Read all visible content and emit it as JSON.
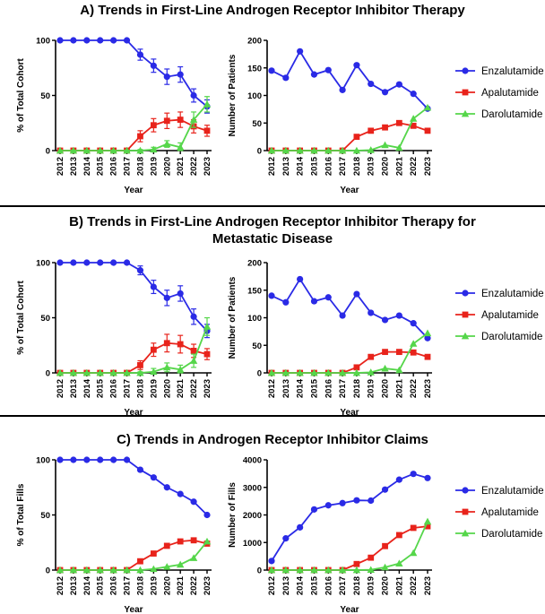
{
  "sections": [
    {
      "title": "A) Trends in First-Line Androgen Receptor Inhibitor Therapy"
    },
    {
      "title": "B) Trends in First-Line Androgen Receptor Inhibitor Therapy for Metastatic Disease"
    },
    {
      "title": "C) Trends in Androgen Receptor Inhibitor Claims"
    }
  ],
  "legend": {
    "entries": [
      {
        "label": "Enzalutamide",
        "color": "#2a2ae6",
        "marker": "circle"
      },
      {
        "label": "Apalutamide",
        "color": "#e8231b",
        "marker": "square"
      },
      {
        "label": "Darolutamide",
        "color": "#55d64a",
        "marker": "triangle"
      }
    ]
  },
  "chart_data": [
    {
      "type": "line",
      "panel": "A-left",
      "xlabel": "Year",
      "ylabel": "% of Total Cohort",
      "ylim": [
        0,
        100
      ],
      "yticks": [
        0,
        50,
        100
      ],
      "categories": [
        "2012",
        "2013",
        "2014",
        "2015",
        "2016",
        "2017",
        "2018",
        "2019",
        "2020",
        "2021",
        "2022",
        "2023"
      ],
      "error_bars": true,
      "series": [
        {
          "name": "Enzalutamide",
          "values": [
            100,
            100,
            100,
            100,
            100,
            100,
            87,
            77,
            67,
            69,
            50,
            40
          ],
          "errors": [
            1,
            1,
            1,
            1,
            1,
            1,
            5,
            6,
            7,
            7,
            6,
            6
          ]
        },
        {
          "name": "Apalutamide",
          "values": [
            0,
            0,
            0,
            0,
            0,
            0,
            13,
            23,
            27,
            28,
            22,
            18
          ],
          "errors": [
            1,
            1,
            1,
            1,
            1,
            1,
            5,
            6,
            7,
            7,
            6,
            5
          ]
        },
        {
          "name": "Darolutamide",
          "values": [
            0,
            0,
            0,
            0,
            0,
            0,
            0,
            1,
            6,
            3,
            28,
            42
          ],
          "errors": [
            0,
            0,
            0,
            0,
            0,
            0,
            1,
            2,
            3,
            4,
            7,
            7
          ]
        }
      ]
    },
    {
      "type": "line",
      "panel": "A-right",
      "xlabel": "Year",
      "ylabel": "Number of Patients",
      "ylim": [
        0,
        200
      ],
      "yticks": [
        0,
        50,
        100,
        150,
        200
      ],
      "categories": [
        "2012",
        "2013",
        "2014",
        "2015",
        "2016",
        "2017",
        "2018",
        "2019",
        "2020",
        "2021",
        "2022",
        "2023"
      ],
      "series": [
        {
          "name": "Enzalutamide",
          "values": [
            145,
            132,
            180,
            138,
            146,
            110,
            155,
            121,
            106,
            120,
            103,
            76
          ]
        },
        {
          "name": "Apalutamide",
          "values": [
            0,
            0,
            0,
            0,
            0,
            0,
            25,
            36,
            42,
            50,
            45,
            36
          ]
        },
        {
          "name": "Darolutamide",
          "values": [
            0,
            0,
            0,
            0,
            0,
            0,
            0,
            1,
            10,
            5,
            58,
            78
          ]
        }
      ]
    },
    {
      "type": "line",
      "panel": "B-left",
      "xlabel": "Year",
      "ylabel": "% of Total Cohort",
      "ylim": [
        0,
        100
      ],
      "yticks": [
        0,
        50,
        100
      ],
      "categories": [
        "2012",
        "2013",
        "2014",
        "2015",
        "2016",
        "2017",
        "2018",
        "2019",
        "2020",
        "2021",
        "2022",
        "2023"
      ],
      "error_bars": true,
      "series": [
        {
          "name": "Enzalutamide",
          "values": [
            100,
            100,
            100,
            100,
            100,
            100,
            93,
            78,
            68,
            72,
            51,
            38
          ],
          "errors": [
            1,
            1,
            1,
            1,
            1,
            1,
            4,
            6,
            7,
            7,
            7,
            6
          ]
        },
        {
          "name": "Apalutamide",
          "values": [
            0,
            0,
            0,
            0,
            0,
            0,
            7,
            21,
            27,
            26,
            20,
            17
          ],
          "errors": [
            1,
            1,
            1,
            1,
            1,
            1,
            4,
            6,
            8,
            8,
            6,
            5
          ]
        },
        {
          "name": "Darolutamide",
          "values": [
            0,
            0,
            0,
            0,
            0,
            0,
            0,
            1,
            5,
            3,
            11,
            42
          ],
          "errors": [
            0,
            0,
            0,
            0,
            0,
            0,
            1,
            3,
            4,
            4,
            6,
            8
          ]
        }
      ]
    },
    {
      "type": "line",
      "panel": "B-right",
      "xlabel": "Year",
      "ylabel": "Number of Patients",
      "ylim": [
        0,
        200
      ],
      "yticks": [
        0,
        50,
        100,
        150,
        200
      ],
      "categories": [
        "2012",
        "2013",
        "2014",
        "2015",
        "2016",
        "2017",
        "2018",
        "2019",
        "2020",
        "2021",
        "2022",
        "2023"
      ],
      "series": [
        {
          "name": "Enzalutamide",
          "values": [
            140,
            128,
            170,
            130,
            137,
            104,
            143,
            109,
            96,
            104,
            90,
            63
          ]
        },
        {
          "name": "Apalutamide",
          "values": [
            0,
            0,
            0,
            0,
            0,
            0,
            10,
            29,
            38,
            38,
            37,
            29
          ]
        },
        {
          "name": "Darolutamide",
          "values": [
            0,
            0,
            0,
            0,
            0,
            0,
            0,
            1,
            8,
            5,
            53,
            72
          ]
        }
      ]
    },
    {
      "type": "line",
      "panel": "C-left",
      "xlabel": "Year",
      "ylabel": "% of Total Fills",
      "ylim": [
        0,
        100
      ],
      "yticks": [
        0,
        50,
        100
      ],
      "categories": [
        "2012",
        "2013",
        "2014",
        "2015",
        "2016",
        "2017",
        "2018",
        "2019",
        "2020",
        "2021",
        "2022",
        "2023"
      ],
      "series": [
        {
          "name": "Enzalutamide",
          "values": [
            100,
            100,
            100,
            100,
            100,
            100,
            91,
            84,
            75,
            69,
            62,
            50
          ]
        },
        {
          "name": "Apalutamide",
          "values": [
            0,
            0,
            0,
            0,
            0,
            0,
            8,
            15,
            22,
            26,
            27,
            24
          ]
        },
        {
          "name": "Darolutamide",
          "values": [
            0,
            0,
            0,
            0,
            0,
            0,
            0,
            1,
            3,
            5,
            11,
            26
          ]
        }
      ]
    },
    {
      "type": "line",
      "panel": "C-right",
      "xlabel": "Year",
      "ylabel": "Number of Fills",
      "ylim": [
        0,
        4000
      ],
      "yticks": [
        0,
        1000,
        2000,
        3000,
        4000
      ],
      "categories": [
        "2012",
        "2013",
        "2014",
        "2015",
        "2016",
        "2017",
        "2018",
        "2019",
        "2020",
        "2021",
        "2022",
        "2023"
      ],
      "series": [
        {
          "name": "Enzalutamide",
          "values": [
            330,
            1150,
            1550,
            2200,
            2350,
            2430,
            2530,
            2520,
            2920,
            3280,
            3490,
            3340
          ]
        },
        {
          "name": "Apalutamide",
          "values": [
            0,
            0,
            0,
            0,
            0,
            0,
            220,
            450,
            870,
            1270,
            1530,
            1590
          ]
        },
        {
          "name": "Darolutamide",
          "values": [
            0,
            0,
            0,
            0,
            0,
            0,
            0,
            10,
            100,
            240,
            620,
            1760
          ]
        }
      ]
    }
  ]
}
